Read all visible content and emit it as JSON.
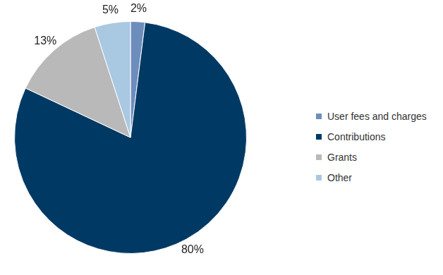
{
  "chart_data": {
    "type": "pie",
    "categories": [
      "User fees and charges",
      "Contributions",
      "Grants",
      "Other"
    ],
    "values": [
      2,
      80,
      13,
      5
    ],
    "value_labels": [
      "2%",
      "80%",
      "13%",
      "5%"
    ],
    "colors": [
      "#6d8dbd",
      "#003a64",
      "#b9b9b9",
      "#a9c8e2"
    ],
    "data_labels": true,
    "legend": "right"
  }
}
